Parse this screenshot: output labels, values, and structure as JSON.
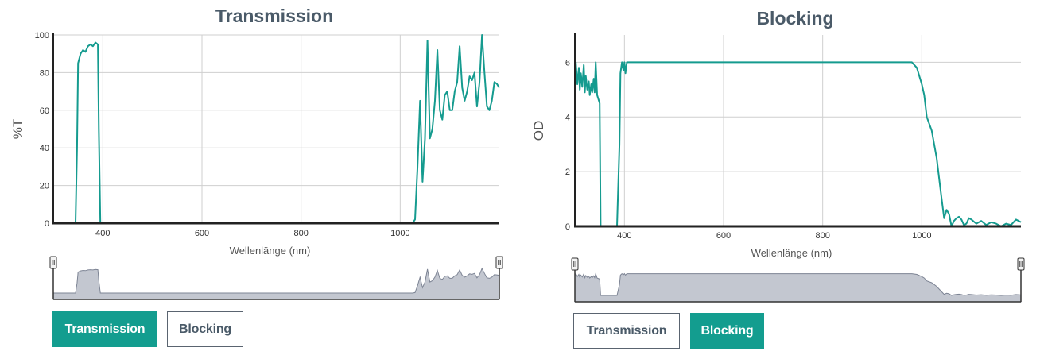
{
  "chart_data": [
    {
      "type": "line",
      "title": "Transmission",
      "xlabel": "Wellenlänge (nm)",
      "ylabel": "%T",
      "xlim": [
        300,
        1200
      ],
      "ylim": [
        0,
        100
      ],
      "x_ticks": [
        400,
        600,
        800,
        1000
      ],
      "y_ticks": [
        0,
        20,
        40,
        60,
        80,
        100
      ],
      "grid": true,
      "line_color": "#159b8f",
      "series": [
        {
          "x": [
            300,
            340,
            345,
            348,
            350,
            355,
            360,
            365,
            370,
            375,
            380,
            385,
            390,
            392,
            395,
            400,
            500,
            600,
            700,
            800,
            900,
            1000,
            1025,
            1030,
            1035,
            1040,
            1045,
            1050,
            1055,
            1060,
            1065,
            1070,
            1075,
            1080,
            1085,
            1090,
            1095,
            1100,
            1105,
            1110,
            1115,
            1120,
            1125,
            1130,
            1135,
            1140,
            1145,
            1150,
            1155,
            1160,
            1165,
            1170,
            1175,
            1180,
            1185,
            1190,
            1195,
            1200
          ],
          "y": [
            0,
            0,
            0,
            40,
            85,
            90,
            92,
            91,
            94,
            95,
            94,
            96,
            95,
            50,
            0,
            0,
            0,
            0,
            0,
            0,
            0,
            0,
            0,
            2,
            30,
            65,
            22,
            45,
            97,
            45,
            50,
            65,
            92,
            60,
            55,
            68,
            70,
            60,
            60,
            70,
            75,
            94,
            72,
            65,
            70,
            78,
            76,
            80,
            62,
            75,
            100,
            80,
            62,
            60,
            65,
            75,
            74,
            72
          ]
        }
      ]
    },
    {
      "type": "line",
      "title": "Blocking",
      "xlabel": "Wellenlänge (nm)",
      "ylabel": "OD",
      "xlim": [
        300,
        1200
      ],
      "ylim": [
        0,
        7
      ],
      "x_ticks": [
        400,
        600,
        800,
        1000
      ],
      "y_ticks": [
        0,
        2,
        4,
        6
      ],
      "grid": true,
      "line_color": "#159b8f",
      "series": [
        {
          "x": [
            300,
            302,
            305,
            308,
            310,
            312,
            315,
            318,
            320,
            322,
            325,
            328,
            330,
            333,
            335,
            338,
            340,
            342,
            345,
            350,
            352,
            360,
            385,
            390,
            392,
            395,
            398,
            400,
            402,
            405,
            408,
            410,
            500,
            600,
            700,
            800,
            900,
            980,
            990,
            1000,
            1005,
            1010,
            1020,
            1030,
            1040,
            1045,
            1050,
            1055,
            1060,
            1065,
            1070,
            1075,
            1080,
            1085,
            1090,
            1095,
            1100,
            1110,
            1120,
            1130,
            1140,
            1150,
            1160,
            1170,
            1180,
            1190,
            1200
          ],
          "y": [
            5.5,
            6.0,
            5.2,
            5.8,
            5.0,
            5.6,
            5.1,
            5.9,
            4.9,
            5.5,
            5.0,
            5.3,
            4.8,
            5.2,
            4.9,
            5.4,
            4.9,
            6.0,
            4.8,
            4.5,
            0.0,
            0.0,
            0.0,
            3.0,
            5.6,
            6.0,
            5.7,
            6.0,
            5.6,
            6.0,
            6.0,
            6.0,
            6.0,
            6.0,
            6.0,
            6.0,
            6.0,
            6.0,
            5.8,
            5.2,
            4.8,
            4.0,
            3.5,
            2.5,
            1.0,
            0.3,
            0.6,
            0.45,
            0.0,
            0.2,
            0.3,
            0.35,
            0.25,
            0.05,
            0.1,
            0.3,
            0.25,
            0.1,
            0.2,
            0.05,
            0.15,
            0.1,
            0.0,
            0.1,
            0.05,
            0.25,
            0.15
          ]
        }
      ]
    }
  ],
  "buttons": {
    "left": {
      "transmission": "Transmission",
      "blocking": "Blocking"
    },
    "right": {
      "transmission": "Transmission",
      "blocking": "Blocking"
    }
  },
  "active": {
    "left": "Transmission",
    "right": "Blocking"
  },
  "colors": {
    "accent": "#139d8f",
    "line": "#159b8f",
    "grid": "#cfcfcf",
    "axis": "#222222",
    "navigator_fill": "#b8bdc8",
    "navigator_stroke": "#7d8494",
    "title": "#4a5a68"
  }
}
